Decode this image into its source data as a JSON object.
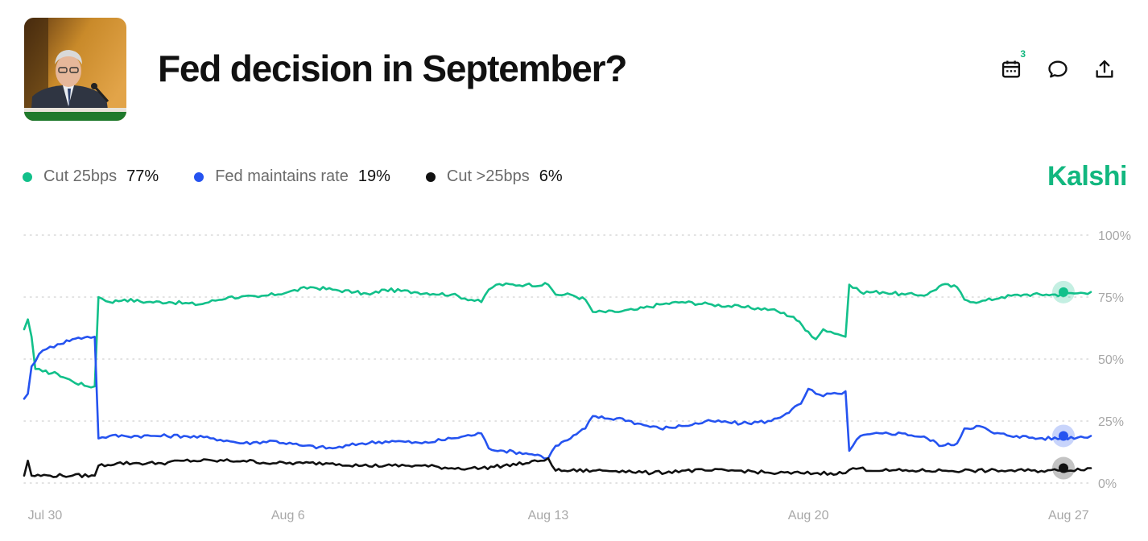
{
  "header": {
    "title": "Fed decision in September?",
    "calendar_badge": "3",
    "brand": "Kalshi",
    "icons": [
      "calendar-icon",
      "comment-icon",
      "share-icon"
    ]
  },
  "colors": {
    "cut_25": "#12c08a",
    "maintain": "#2553f0",
    "cut_gt_25": "#111111",
    "brand": "#12b77f"
  },
  "legend": [
    {
      "name": "Cut 25bps",
      "value": "77%",
      "color": "#12c08a"
    },
    {
      "name": "Fed maintains rate",
      "value": "19%",
      "color": "#2553f0"
    },
    {
      "name": "Cut >25bps",
      "value": "6%",
      "color": "#111111"
    }
  ],
  "chart_data": {
    "type": "line",
    "x_ticks": [
      "Jul 30",
      "Aug 6",
      "Aug 13",
      "Aug 20",
      "Aug 27"
    ],
    "x_tick_days": [
      0,
      7,
      14,
      21,
      28
    ],
    "x_range_days": [
      -0.1,
      28.6
    ],
    "y_ticks": [
      "100%",
      "75%",
      "50%",
      "25%",
      "0%"
    ],
    "y_tick_values": [
      100,
      75,
      50,
      25,
      0
    ],
    "ylim": [
      0,
      100
    ],
    "grid": true,
    "series": [
      {
        "name": "Cut 25bps",
        "color": "#12c08a",
        "points": [
          [
            -0.1,
            62
          ],
          [
            0.0,
            66
          ],
          [
            0.1,
            59
          ],
          [
            0.2,
            46
          ],
          [
            0.4,
            45
          ],
          [
            0.8,
            44
          ],
          [
            1.2,
            41
          ],
          [
            1.6,
            39
          ],
          [
            1.8,
            39
          ],
          [
            1.9,
            75
          ],
          [
            2.2,
            73
          ],
          [
            2.6,
            74
          ],
          [
            3.2,
            73
          ],
          [
            3.8,
            73
          ],
          [
            4.6,
            72
          ],
          [
            5.4,
            75
          ],
          [
            6.2,
            75
          ],
          [
            7.0,
            77
          ],
          [
            7.6,
            79
          ],
          [
            8.2,
            78
          ],
          [
            8.8,
            77
          ],
          [
            9.2,
            76
          ],
          [
            9.6,
            78
          ],
          [
            10.4,
            77
          ],
          [
            11.4,
            76
          ],
          [
            12.2,
            73
          ],
          [
            12.4,
            78
          ],
          [
            12.6,
            80
          ],
          [
            13.4,
            80
          ],
          [
            14.0,
            80
          ],
          [
            14.2,
            76
          ],
          [
            14.6,
            76
          ],
          [
            15.0,
            74
          ],
          [
            15.2,
            69
          ],
          [
            15.8,
            69
          ],
          [
            16.4,
            70
          ],
          [
            17.0,
            72
          ],
          [
            17.6,
            73
          ],
          [
            18.4,
            72
          ],
          [
            19.2,
            71
          ],
          [
            20.0,
            70
          ],
          [
            20.6,
            67
          ],
          [
            21.0,
            61
          ],
          [
            21.2,
            58
          ],
          [
            21.4,
            62
          ],
          [
            21.6,
            61
          ],
          [
            21.8,
            60
          ],
          [
            22.0,
            59
          ],
          [
            22.1,
            80
          ],
          [
            22.4,
            77
          ],
          [
            23.0,
            77
          ],
          [
            23.6,
            76
          ],
          [
            24.2,
            76
          ],
          [
            24.6,
            80
          ],
          [
            25.0,
            79
          ],
          [
            25.2,
            74
          ],
          [
            25.6,
            73
          ],
          [
            26.2,
            75
          ],
          [
            26.8,
            76
          ],
          [
            27.4,
            76
          ],
          [
            27.8,
            76
          ],
          [
            28.6,
            77
          ]
        ]
      },
      {
        "name": "Fed maintains rate",
        "color": "#2553f0",
        "points": [
          [
            -0.1,
            34
          ],
          [
            0.0,
            36
          ],
          [
            0.1,
            47
          ],
          [
            0.3,
            52
          ],
          [
            0.5,
            54
          ],
          [
            0.8,
            56
          ],
          [
            1.2,
            58
          ],
          [
            1.6,
            59
          ],
          [
            1.8,
            59
          ],
          [
            1.9,
            18
          ],
          [
            2.2,
            19
          ],
          [
            2.6,
            19
          ],
          [
            3.4,
            19
          ],
          [
            4.2,
            19
          ],
          [
            5.0,
            18
          ],
          [
            5.8,
            16
          ],
          [
            6.6,
            17
          ],
          [
            7.4,
            15
          ],
          [
            8.2,
            14
          ],
          [
            9.0,
            16
          ],
          [
            9.8,
            17
          ],
          [
            10.6,
            16
          ],
          [
            11.4,
            18
          ],
          [
            12.2,
            20
          ],
          [
            12.4,
            14
          ],
          [
            12.8,
            13
          ],
          [
            13.4,
            12
          ],
          [
            13.8,
            11
          ],
          [
            14.0,
            10
          ],
          [
            14.2,
            15
          ],
          [
            14.6,
            18
          ],
          [
            15.0,
            22
          ],
          [
            15.2,
            27
          ],
          [
            15.6,
            26
          ],
          [
            16.0,
            26
          ],
          [
            16.4,
            24
          ],
          [
            17.0,
            22
          ],
          [
            17.6,
            23
          ],
          [
            18.4,
            25
          ],
          [
            19.2,
            24
          ],
          [
            20.0,
            25
          ],
          [
            20.4,
            28
          ],
          [
            20.8,
            32
          ],
          [
            21.0,
            38
          ],
          [
            21.2,
            36
          ],
          [
            21.4,
            35
          ],
          [
            21.6,
            36
          ],
          [
            21.8,
            36
          ],
          [
            22.0,
            37
          ],
          [
            22.1,
            13
          ],
          [
            22.4,
            19
          ],
          [
            23.0,
            20
          ],
          [
            23.6,
            20
          ],
          [
            24.2,
            18
          ],
          [
            24.6,
            15
          ],
          [
            25.0,
            16
          ],
          [
            25.2,
            22
          ],
          [
            25.6,
            23
          ],
          [
            26.0,
            20
          ],
          [
            26.6,
            19
          ],
          [
            27.2,
            18
          ],
          [
            27.8,
            18
          ],
          [
            28.6,
            19
          ]
        ]
      },
      {
        "name": "Cut >25bps",
        "color": "#111111",
        "points": [
          [
            -0.1,
            3
          ],
          [
            0.0,
            9
          ],
          [
            0.1,
            3
          ],
          [
            0.6,
            3
          ],
          [
            1.2,
            3
          ],
          [
            1.8,
            3
          ],
          [
            1.9,
            7
          ],
          [
            2.4,
            8
          ],
          [
            3.0,
            8
          ],
          [
            3.6,
            8
          ],
          [
            4.2,
            9
          ],
          [
            5.0,
            9
          ],
          [
            5.8,
            9
          ],
          [
            6.6,
            8
          ],
          [
            7.4,
            8
          ],
          [
            8.2,
            8
          ],
          [
            9.0,
            7
          ],
          [
            9.8,
            7
          ],
          [
            10.6,
            7
          ],
          [
            11.4,
            6
          ],
          [
            12.2,
            6
          ],
          [
            12.8,
            7
          ],
          [
            13.4,
            8
          ],
          [
            13.8,
            9
          ],
          [
            14.0,
            10
          ],
          [
            14.2,
            5
          ],
          [
            14.6,
            5
          ],
          [
            15.2,
            5
          ],
          [
            16.0,
            5
          ],
          [
            16.8,
            4
          ],
          [
            17.6,
            5
          ],
          [
            18.4,
            5
          ],
          [
            19.2,
            5
          ],
          [
            20.0,
            4
          ],
          [
            20.8,
            4
          ],
          [
            21.6,
            4
          ],
          [
            22.0,
            4
          ],
          [
            22.2,
            6
          ],
          [
            23.0,
            5
          ],
          [
            23.8,
            5
          ],
          [
            24.6,
            5
          ],
          [
            25.4,
            5
          ],
          [
            26.2,
            5
          ],
          [
            27.0,
            5
          ],
          [
            27.8,
            5
          ],
          [
            28.6,
            6
          ]
        ]
      }
    ]
  }
}
